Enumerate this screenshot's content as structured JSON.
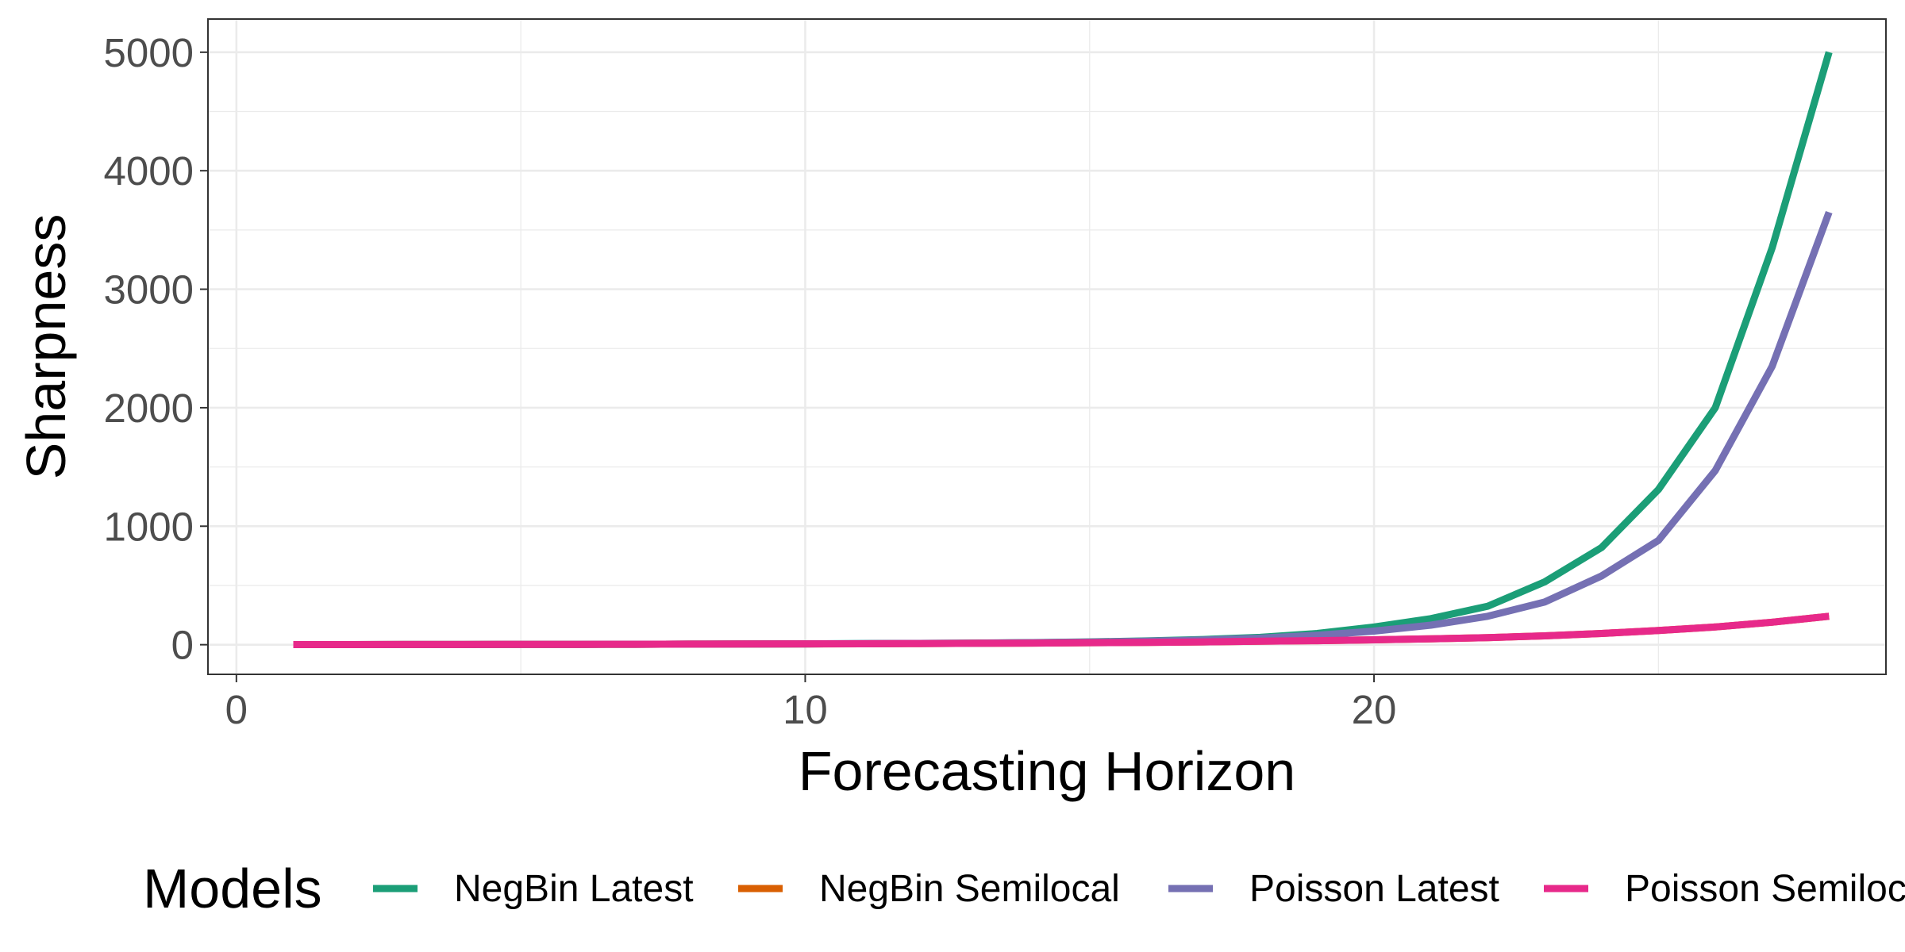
{
  "chart_data": {
    "type": "line",
    "title": "",
    "xlabel": "Forecasting Horizon",
    "ylabel": "Sharpness",
    "xlim": [
      -0.5,
      29
    ],
    "ylim": [
      -250,
      5280
    ],
    "xticks": [
      0,
      10,
      20
    ],
    "yticks": [
      0,
      1000,
      2000,
      3000,
      4000,
      5000
    ],
    "grid": true,
    "legend": {
      "title": "Models",
      "position": "bottom"
    },
    "x": [
      1,
      2,
      3,
      4,
      5,
      6,
      7,
      8,
      9,
      10,
      11,
      12,
      13,
      14,
      15,
      16,
      17,
      18,
      19,
      20,
      21,
      22,
      23,
      24,
      25,
      26,
      27,
      28
    ],
    "series": [
      {
        "name": "NegBin Latest",
        "color": "#1b9e77",
        "values": [
          1,
          1,
          2,
          2,
          3,
          3,
          4,
          5,
          6,
          7,
          9,
          11,
          14,
          18,
          24,
          32,
          44,
          62,
          95,
          150,
          220,
          325,
          530,
          820,
          1310,
          2000,
          3350,
          5000
        ]
      },
      {
        "name": "NegBin Semilocal",
        "color": "#d95f02",
        "values": [
          1,
          1,
          2,
          2,
          3,
          3,
          4,
          5,
          6,
          7,
          8,
          10,
          12,
          14,
          17,
          20,
          24,
          29,
          34,
          41,
          50,
          60,
          75,
          95,
          120,
          150,
          190,
          240
        ]
      },
      {
        "name": "Poisson Latest",
        "color": "#7570b3",
        "values": [
          1,
          1,
          2,
          2,
          3,
          3,
          4,
          5,
          6,
          7,
          9,
          11,
          13,
          17,
          22,
          29,
          40,
          55,
          80,
          115,
          165,
          240,
          360,
          580,
          880,
          1470,
          2350,
          3650
        ]
      },
      {
        "name": "Poisson Semilocal",
        "color": "#e7298a",
        "values": [
          1,
          1,
          2,
          2,
          3,
          3,
          4,
          5,
          6,
          7,
          8,
          10,
          12,
          14,
          17,
          20,
          24,
          29,
          34,
          41,
          50,
          60,
          75,
          95,
          120,
          150,
          190,
          240
        ]
      }
    ]
  }
}
